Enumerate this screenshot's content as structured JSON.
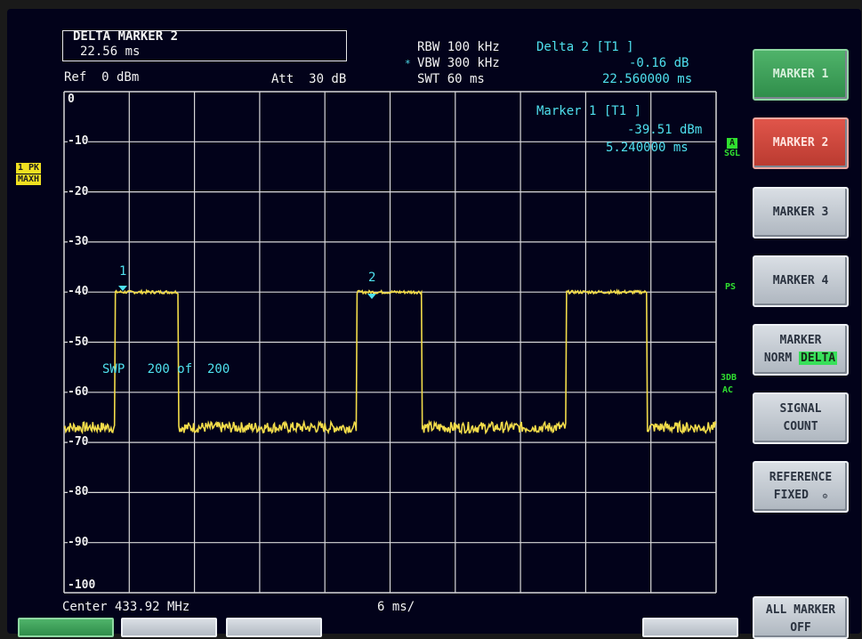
{
  "header": {
    "delta_marker_title": "DELTA MARKER 2",
    "delta_marker_value": "22.56 ms",
    "ref": "Ref  0 dBm",
    "att": "Att  30 dB",
    "rbw": "RBW 100 kHz",
    "vbw_mark": "*",
    "vbw": "VBW 300 kHz",
    "swt": "SWT 60 ms",
    "delta2_title": "Delta 2 [T1 ]",
    "delta2_level": "-0.16 dB",
    "delta2_time": "22.560000 ms"
  },
  "marker1_info": {
    "title": "Marker 1 [T1 ]",
    "level": "-39.51 dBm",
    "time": "5.240000 ms"
  },
  "side_tags": {
    "left_trace": "1 PK",
    "left_mode": "MAXH",
    "right_a": "A",
    "right_sgl": "SGL",
    "right_ps": "PS",
    "right_3db": "3DB",
    "right_ac": "AC"
  },
  "y_axis_labels": [
    "0",
    "-10",
    "-20",
    "-30",
    "-40",
    "-50",
    "-60",
    "-70",
    "-80",
    "-90",
    "-100"
  ],
  "markers": {
    "m1": "1",
    "m2": "2"
  },
  "swp_label": "SWP   200 of  200",
  "footer": {
    "center": "Center 433.92 MHz",
    "span": "6 ms/"
  },
  "softkeys": {
    "marker1": "MARKER 1",
    "marker2": "MARKER 2",
    "marker3": "MARKER 3",
    "marker4": "MARKER 4",
    "marker_norm_line1": "MARKER",
    "marker_norm_norm": "NORM",
    "marker_norm_delta": "DELTA",
    "signal_count_line1": "SIGNAL",
    "signal_count_line2": "COUNT",
    "reference_line1": "REFERENCE",
    "reference_line2": "FIXED",
    "all_marker_line1": "ALL MARKER",
    "all_marker_line2": "OFF"
  },
  "trace": {
    "unit": "dBm",
    "high_level_dbm": -40,
    "low_level_dbm": -67,
    "high_segments_ms": [
      [
        4.7,
        10.5
      ],
      [
        26.9,
        32.9
      ],
      [
        46.2,
        53.6
      ]
    ]
  },
  "colors": {
    "trace": "#f2dc4a",
    "marker": "#4fe0ee",
    "grid": "#d8d8d8",
    "softkey_active": "#3aa55a",
    "softkey_selected": "#d0463c"
  }
}
